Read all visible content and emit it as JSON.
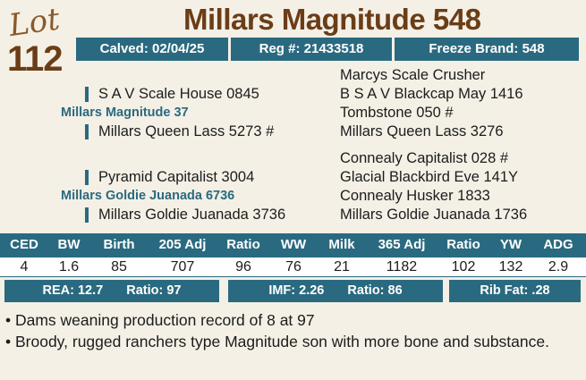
{
  "lot": {
    "word": "Lot",
    "number": "112"
  },
  "title": "Millars Magnitude 548",
  "info": {
    "calved": "Calved: 02/04/25",
    "reg": "Reg #: 21433518",
    "freeze_brand": "Freeze Brand: 548"
  },
  "pedigree": {
    "sire_line": {
      "sss": "Marcys Scale Crusher",
      "ss": "S A V Scale House 0845",
      "ssd": "B S A V Blackcap May 1416",
      "sire": "Millars Magnitude 37",
      "sds": "Tombstone 050 #",
      "sd": "Millars Queen Lass 5273 #",
      "sdd": "Millars Queen Lass 3276"
    },
    "dam_line": {
      "dss": "Connealy Capitalist 028 #",
      "ds": "Pyramid Capitalist 3004",
      "dsd": "Glacial Blackbird Eve 141Y",
      "dam": "Millars Goldie Juanada 6736",
      "dds": "Connealy Husker 1833",
      "dd": "Millars Goldie Juanada 3736",
      "ddd": "Millars Goldie Juanada 1736"
    }
  },
  "epd": {
    "headers": [
      "CED",
      "BW",
      "Birth",
      "205 Adj",
      "Ratio",
      "WW",
      "Milk",
      "365 Adj",
      "Ratio",
      "YW",
      "ADG"
    ],
    "values": [
      "4",
      "1.6",
      "85",
      "707",
      "96",
      "76",
      "21",
      "1182",
      "102",
      "132",
      "2.9"
    ]
  },
  "carcass": {
    "rea": "REA: 12.7",
    "rea_ratio": "Ratio: 97",
    "imf": "IMF: 2.26",
    "imf_ratio": "Ratio: 86",
    "rib_fat": "Rib Fat: .28"
  },
  "notes": [
    "• Dams weaning production record of 8 at 97",
    "• Broody, rugged ranchers type Magnitude son with more bone and substance."
  ],
  "colors": {
    "accent": "#2a6a80",
    "brand_brown": "#6b3d17",
    "background": "#f4f0e6"
  }
}
